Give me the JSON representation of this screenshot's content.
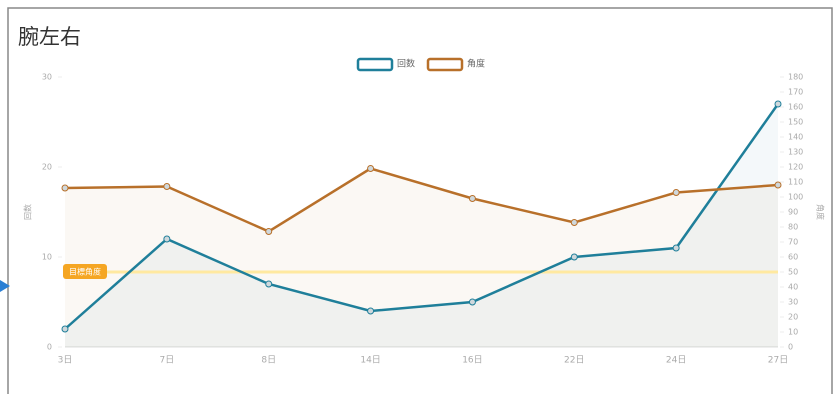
{
  "chart_data": {
    "type": "line",
    "title": "腕左右",
    "categories": [
      "3日",
      "7日",
      "8日",
      "14日",
      "16日",
      "22日",
      "24日",
      "27日"
    ],
    "series": [
      {
        "name": "回数",
        "color": "#1f7f9a",
        "values": [
          2,
          12,
          7,
          4,
          5,
          10,
          11,
          27
        ]
      },
      {
        "name": "角度",
        "color": "#b8702a",
        "axis": "y2",
        "values": [
          106,
          107,
          77,
          119,
          99,
          83,
          103,
          108
        ]
      }
    ],
    "y_label": "回数",
    "y2_label": "角度",
    "ylim": [
      0,
      30
    ],
    "yticks": [
      0,
      10,
      20,
      30
    ],
    "y2lim": [
      0,
      180
    ],
    "y2ticks": [
      0,
      10,
      20,
      30,
      40,
      50,
      60,
      70,
      80,
      90,
      100,
      110,
      120,
      130,
      140,
      150,
      160,
      170,
      180
    ],
    "annotation": {
      "label": "目標角度",
      "value": 50,
      "axis": "y2"
    }
  }
}
